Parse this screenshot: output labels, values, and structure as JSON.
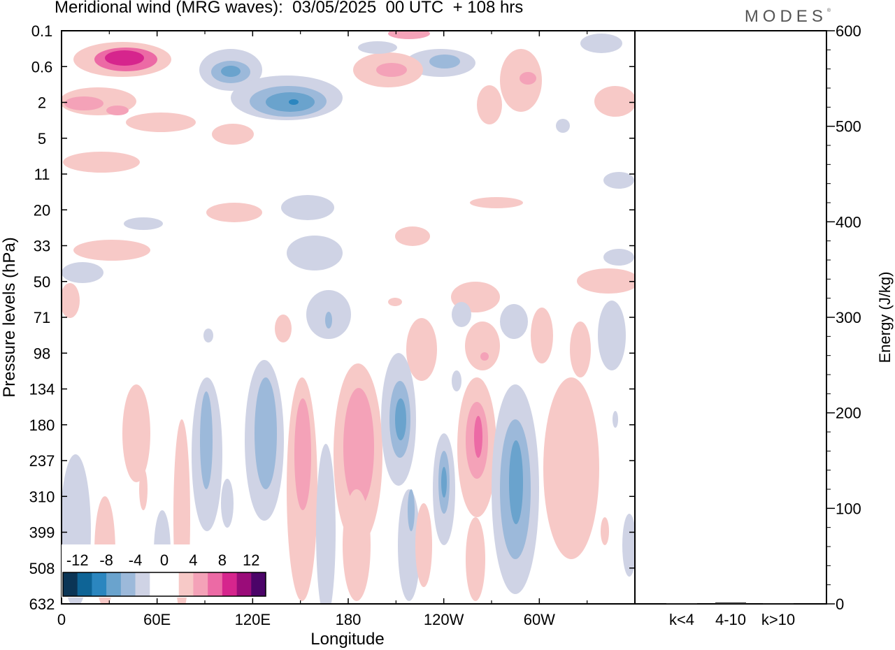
{
  "title": "Meridional wind (MRG waves):  03/05/2025  00 UTC  + 108 hrs",
  "brand": "MODES",
  "chart_data": [
    {
      "type": "heatmap",
      "title": "Meridional wind (MRG waves):  03/05/2025  00 UTC  + 108 hrs",
      "xlabel": "Longitude",
      "ylabel": "Pressure levels (hPa)",
      "x_ticks": [
        "0",
        "60E",
        "120E",
        "180",
        "120W",
        "60W"
      ],
      "y_ticks": [
        "0.1",
        "0.6",
        "2",
        "5",
        "11",
        "20",
        "33",
        "50",
        "71",
        "98",
        "134",
        "180",
        "237",
        "310",
        "399",
        "508",
        "632"
      ],
      "colorbar": {
        "labels": [
          "-12",
          "-8",
          "-4",
          "0",
          "4",
          "8",
          "12"
        ],
        "colors": [
          "#0b3556",
          "#0e6496",
          "#2b86bf",
          "#6aa3cd",
          "#9cb9da",
          "#cfd3e5",
          "#ffffff",
          "#ffffff",
          "#f7c9c7",
          "#f4a2b8",
          "#ec6aa5",
          "#d6258d",
          "#9a0c79",
          "#4b0468"
        ]
      },
      "note_contours": [
        {
          "level": "positive-light",
          "color": "#f7c9c7"
        },
        {
          "level": "negative-light",
          "color": "#cfd3e5"
        }
      ]
    },
    {
      "type": "bar",
      "categories": [
        "k<4",
        "4-10",
        "k>10"
      ],
      "values": [
        0.5,
        1.5,
        0.3
      ],
      "ylabel": "Energy (J/kg)",
      "ylim": [
        0,
        600
      ],
      "y_ticks": [
        "0",
        "100",
        "200",
        "300",
        "400",
        "500",
        "600"
      ]
    }
  ]
}
